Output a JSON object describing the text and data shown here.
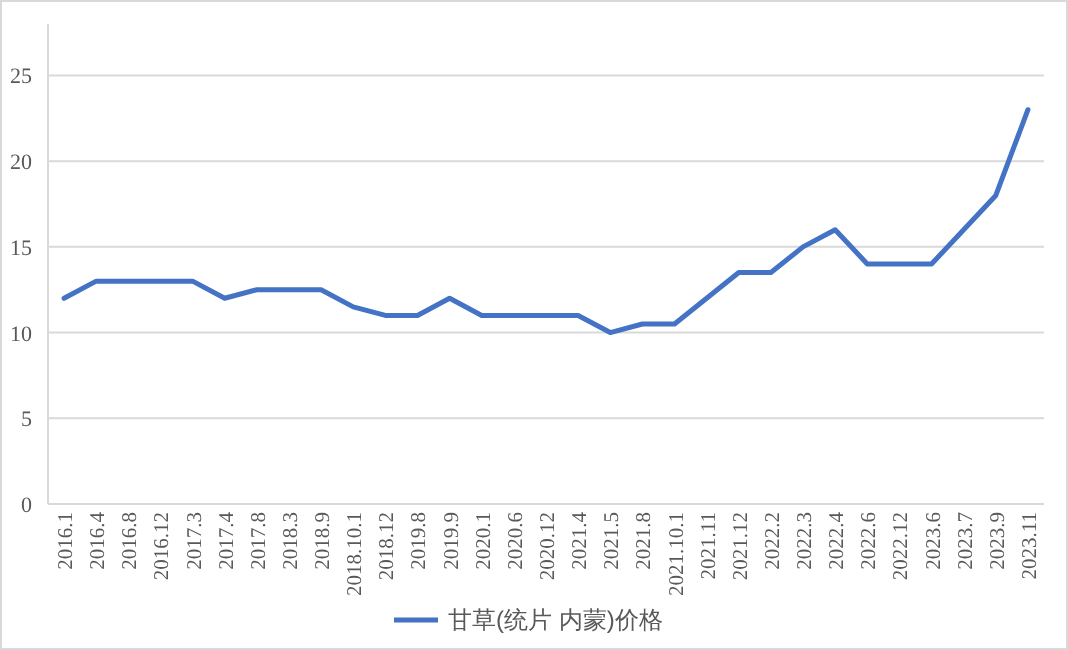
{
  "chart_data": {
    "type": "line",
    "categories": [
      "2016.1",
      "2016.4",
      "2016.8",
      "2016.12",
      "2017.3",
      "2017.4",
      "2017.8",
      "2018.3",
      "2018.9",
      "2018.10.1",
      "2018.12",
      "2019.8",
      "2019.9",
      "2020.1",
      "2020.6",
      "2020.12",
      "2021.4",
      "2021.5",
      "2021.8",
      "2021.10.1",
      "2021.11",
      "2021.12",
      "2022.2",
      "2022.3",
      "2022.4",
      "2022.6",
      "2022.12",
      "2023.6",
      "2023.7",
      "2023.9",
      "2023.11"
    ],
    "series": [
      {
        "name": "甘草(统片 内蒙)价格",
        "color": "#4472c4",
        "values": [
          12,
          13,
          13,
          13,
          13,
          12,
          12.5,
          12.5,
          12.5,
          11.5,
          11,
          11,
          12,
          11,
          11,
          11,
          11,
          10,
          10.5,
          10.5,
          12,
          13.5,
          13.5,
          15,
          16,
          14,
          14,
          14,
          16,
          18,
          23
        ]
      }
    ],
    "ylim": [
      0,
      28
    ],
    "yticks": [
      0,
      5,
      10,
      15,
      20,
      25
    ],
    "grid": "y",
    "legend": "bottom",
    "marker": "none",
    "line_style": "solid"
  }
}
